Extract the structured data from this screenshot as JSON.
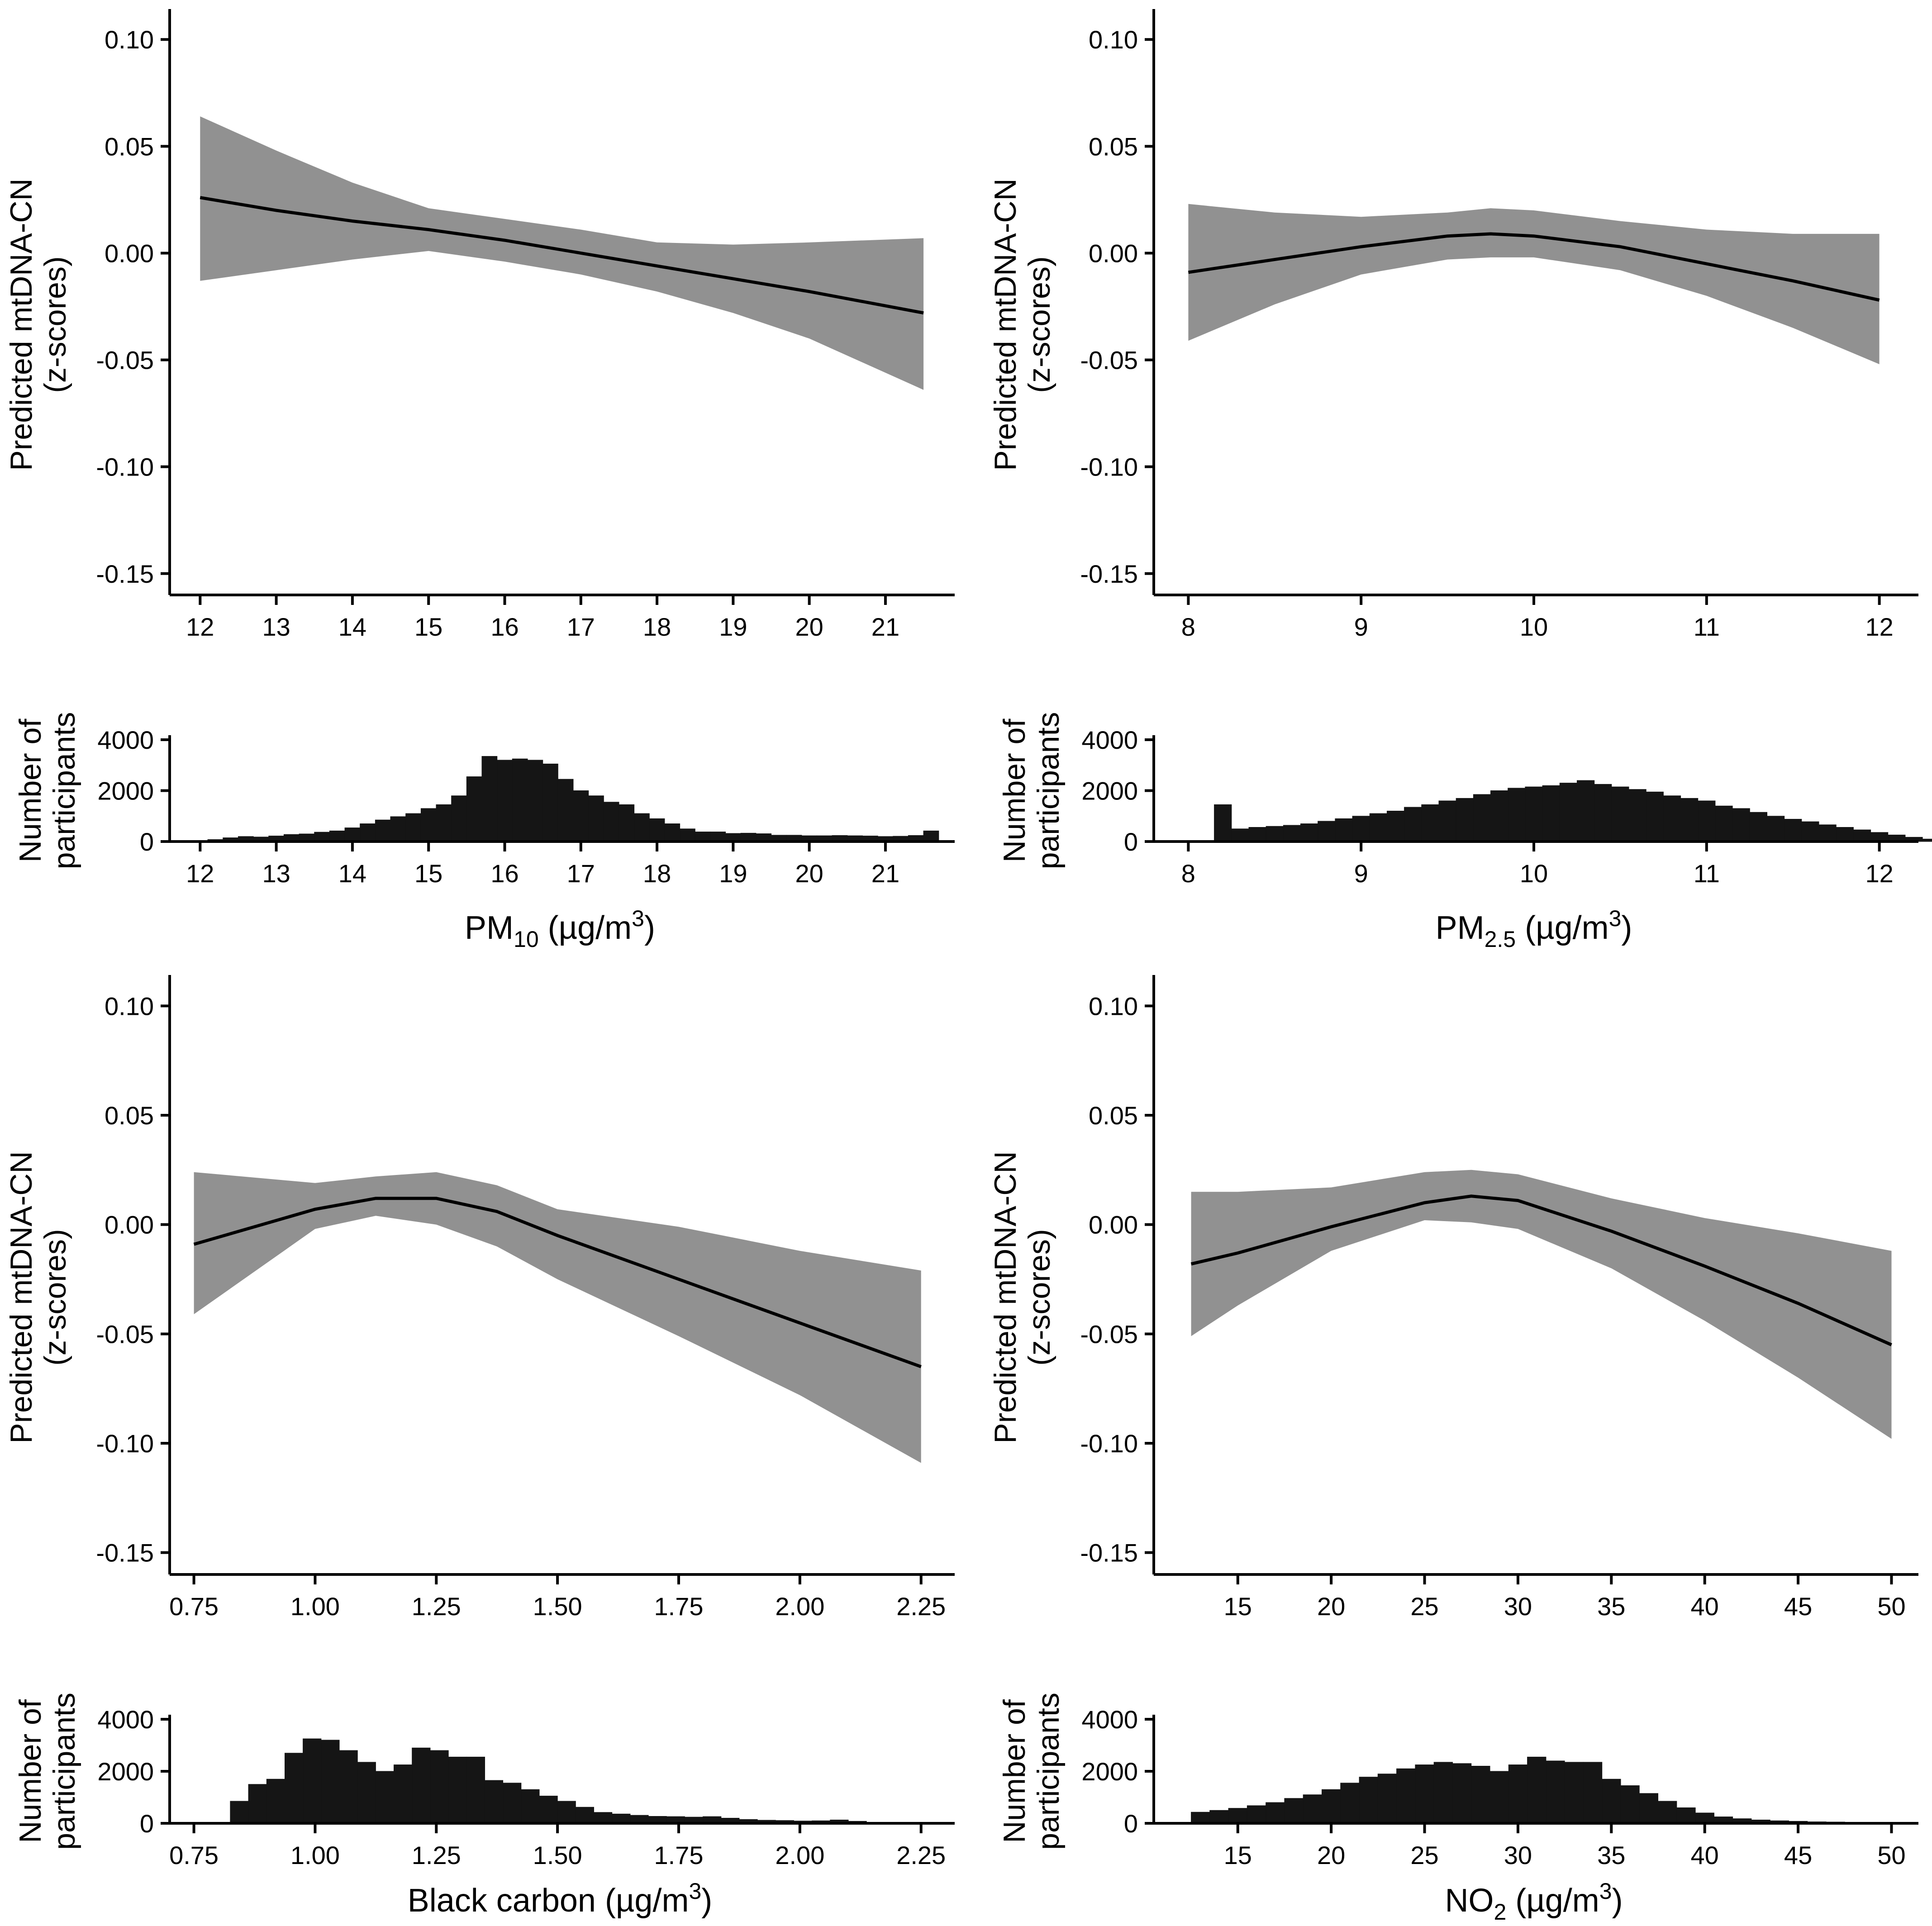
{
  "colors": {
    "band": "#919191",
    "line": "#000000",
    "bars": "#151515",
    "background": "#ffffff"
  },
  "chart_data": [
    {
      "type": "line",
      "title": "",
      "ylabel": "Predicted mtDNA-CN",
      "ylabel2": "(z-scores)",
      "ylim": [
        -0.16,
        0.11
      ],
      "yticks": [
        0.1,
        0.05,
        0.0,
        -0.05,
        -0.1,
        -0.15
      ],
      "ytick_labels": [
        "0.10",
        "0.05",
        "0.00",
        "-0.05",
        "-0.10",
        "-0.15"
      ],
      "xlim": [
        11.6,
        21.85
      ],
      "xticks": [
        12,
        13,
        14,
        15,
        16,
        17,
        18,
        19,
        20,
        21
      ],
      "xtick_labels": [
        "12",
        "13",
        "14",
        "15",
        "16",
        "17",
        "18",
        "19",
        "20",
        "21"
      ],
      "x": [
        12,
        13,
        14,
        15,
        16,
        17,
        18,
        19,
        20,
        21.5
      ],
      "fit": [
        0.026,
        0.02,
        0.015,
        0.011,
        0.006,
        0.0,
        -0.006,
        -0.012,
        -0.018,
        -0.028
      ],
      "lower": [
        -0.013,
        -0.008,
        -0.003,
        0.001,
        -0.004,
        -0.01,
        -0.018,
        -0.028,
        -0.04,
        -0.064
      ],
      "upper": [
        0.064,
        0.048,
        0.033,
        0.021,
        0.016,
        0.011,
        0.005,
        0.004,
        0.005,
        0.007
      ],
      "histogram": {
        "ylabel": "Number of",
        "ylabel2": "participants",
        "xlabel_prefix": "PM",
        "xlabel_sub": "10",
        "xlabel_suffix": " (µg/m",
        "xlabel_sup": "3",
        "xlabel_close": ")",
        "ylim": [
          0,
          4000
        ],
        "yticks": [
          0,
          2000,
          4000
        ],
        "ytick_labels": [
          "0",
          "2000",
          "4000"
        ],
        "bin_start": 11.9,
        "bin_width": 0.2,
        "counts": [
          20,
          80,
          150,
          200,
          180,
          220,
          280,
          300,
          370,
          420,
          540,
          700,
          850,
          980,
          1100,
          1300,
          1450,
          1800,
          2550,
          3350,
          3200,
          3250,
          3200,
          3050,
          2450,
          2000,
          1800,
          1550,
          1450,
          1100,
          900,
          700,
          500,
          380,
          380,
          320,
          330,
          310,
          250,
          250,
          230,
          230,
          240,
          230,
          220,
          200,
          210,
          240,
          420
        ]
      }
    },
    {
      "type": "line",
      "title": "",
      "ylabel": "Predicted mtDNA-CN",
      "ylabel2": "(z-scores)",
      "ylim": [
        -0.16,
        0.11
      ],
      "yticks": [
        0.1,
        0.05,
        0.0,
        -0.05,
        -0.1,
        -0.15
      ],
      "ytick_labels": [
        "0.10",
        "0.05",
        "0.00",
        "-0.05",
        "-0.10",
        "-0.15"
      ],
      "xlim": [
        7.8,
        12.2
      ],
      "xticks": [
        8,
        9,
        10,
        11,
        12
      ],
      "xtick_labels": [
        "8",
        "9",
        "10",
        "11",
        "12"
      ],
      "x": [
        8,
        8.5,
        9,
        9.5,
        9.75,
        10,
        10.5,
        11,
        11.5,
        12
      ],
      "fit": [
        -0.009,
        -0.003,
        0.003,
        0.008,
        0.009,
        0.008,
        0.003,
        -0.005,
        -0.013,
        -0.022
      ],
      "lower": [
        -0.041,
        -0.024,
        -0.01,
        -0.003,
        -0.002,
        -0.002,
        -0.008,
        -0.02,
        -0.035,
        -0.052
      ],
      "upper": [
        0.023,
        0.019,
        0.017,
        0.019,
        0.021,
        0.02,
        0.015,
        0.011,
        0.009,
        0.009
      ],
      "histogram": {
        "ylabel": "Number of",
        "ylabel2": "participants",
        "xlabel_prefix": "PM",
        "xlabel_sub": "2.5",
        "xlabel_suffix": " (µg/m",
        "xlabel_sup": "3",
        "xlabel_close": ")",
        "ylim": [
          0,
          4000
        ],
        "yticks": [
          0,
          2000,
          4000
        ],
        "ytick_labels": [
          "0",
          "2000",
          "4000"
        ],
        "bin_start": 8.15,
        "bin_width": 0.1,
        "counts": [
          1450,
          500,
          560,
          600,
          640,
          700,
          800,
          900,
          1000,
          1100,
          1200,
          1350,
          1450,
          1600,
          1700,
          1850,
          2000,
          2100,
          2150,
          2200,
          2300,
          2400,
          2250,
          2150,
          2050,
          1950,
          1800,
          1700,
          1600,
          1400,
          1300,
          1150,
          1000,
          880,
          780,
          660,
          560,
          460,
          360,
          260,
          170,
          100
        ]
      }
    },
    {
      "type": "line",
      "title": "",
      "ylabel": "Predicted mtDNA-CN",
      "ylabel2": "(z-scores)",
      "ylim": [
        -0.16,
        0.11
      ],
      "yticks": [
        0.1,
        0.05,
        0.0,
        -0.05,
        -0.1,
        -0.15
      ],
      "ytick_labels": [
        "0.10",
        "0.05",
        "0.00",
        "-0.05",
        "-0.10",
        "-0.15"
      ],
      "xlim": [
        0.7,
        2.31
      ],
      "xticks": [
        0.75,
        1.0,
        1.25,
        1.5,
        1.75,
        2.0,
        2.25
      ],
      "xtick_labels": [
        "0.75",
        "1.00",
        "1.25",
        "1.50",
        "1.75",
        "2.00",
        "2.25"
      ],
      "x": [
        0.75,
        1.0,
        1.125,
        1.25,
        1.375,
        1.5,
        1.75,
        2.0,
        2.25
      ],
      "fit": [
        -0.009,
        0.007,
        0.012,
        0.012,
        0.006,
        -0.005,
        -0.025,
        -0.045,
        -0.065
      ],
      "lower": [
        -0.041,
        -0.002,
        0.004,
        0.0,
        -0.01,
        -0.025,
        -0.051,
        -0.078,
        -0.109
      ],
      "upper": [
        0.024,
        0.019,
        0.022,
        0.024,
        0.018,
        0.007,
        -0.001,
        -0.012,
        -0.021
      ],
      "histogram": {
        "ylabel": "Number of",
        "ylabel2": "participants",
        "xlabel_prefix": "Black carbon",
        "xlabel_sub": "",
        "xlabel_suffix": " (µg/m",
        "xlabel_sup": "3",
        "xlabel_close": ")",
        "ylim": [
          0,
          4000
        ],
        "yticks": [
          0,
          2000,
          4000
        ],
        "ytick_labels": [
          "0",
          "2000",
          "4000"
        ],
        "bin_start": 0.825,
        "bin_width": 0.0375,
        "counts": [
          850,
          1500,
          1700,
          2700,
          3250,
          3200,
          2800,
          2350,
          2000,
          2250,
          2900,
          2800,
          2550,
          2550,
          1650,
          1550,
          1300,
          1050,
          850,
          620,
          420,
          360,
          310,
          270,
          260,
          240,
          260,
          200,
          150,
          120,
          110,
          90,
          100,
          130,
          80
        ]
      }
    },
    {
      "type": "line",
      "title": "",
      "ylabel": "Predicted mtDNA-CN",
      "ylabel2": "(z-scores)",
      "ylim": [
        -0.16,
        0.11
      ],
      "yticks": [
        0.1,
        0.05,
        0.0,
        -0.05,
        -0.1,
        -0.15
      ],
      "ytick_labels": [
        "0.10",
        "0.05",
        "0.00",
        "-0.05",
        "-0.10",
        "-0.15"
      ],
      "xlim": [
        10.5,
        51.2
      ],
      "xticks": [
        15,
        20,
        25,
        30,
        35,
        40,
        45,
        50
      ],
      "xtick_labels": [
        "15",
        "20",
        "25",
        "30",
        "35",
        "40",
        "45",
        "50"
      ],
      "x": [
        12.5,
        15,
        20,
        25,
        27.5,
        30,
        35,
        40,
        45,
        50
      ],
      "fit": [
        -0.018,
        -0.013,
        -0.001,
        0.01,
        0.013,
        0.011,
        -0.003,
        -0.019,
        -0.036,
        -0.055
      ],
      "lower": [
        -0.051,
        -0.037,
        -0.012,
        0.002,
        0.001,
        -0.002,
        -0.02,
        -0.044,
        -0.07,
        -0.098
      ],
      "upper": [
        0.015,
        0.015,
        0.017,
        0.024,
        0.025,
        0.023,
        0.012,
        0.003,
        -0.004,
        -0.012
      ],
      "histogram": {
        "ylabel": "Number of",
        "ylabel2": "participants",
        "xlabel_prefix": "NO",
        "xlabel_sub": "2",
        "xlabel_suffix": " (µg/m",
        "xlabel_sup": "3",
        "xlabel_close": ")",
        "ylim": [
          0,
          4000
        ],
        "yticks": [
          0,
          2000,
          4000
        ],
        "ytick_labels": [
          "0",
          "2000",
          "4000"
        ],
        "bin_start": 12.5,
        "bin_width": 1,
        "counts": [
          430,
          500,
          580,
          680,
          800,
          960,
          1100,
          1300,
          1550,
          1780,
          1900,
          2100,
          2250,
          2350,
          2300,
          2200,
          2000,
          2250,
          2550,
          2400,
          2350,
          2350,
          1700,
          1450,
          1150,
          850,
          600,
          400,
          250,
          180,
          130,
          100,
          80,
          60,
          50,
          40,
          30
        ]
      }
    }
  ]
}
